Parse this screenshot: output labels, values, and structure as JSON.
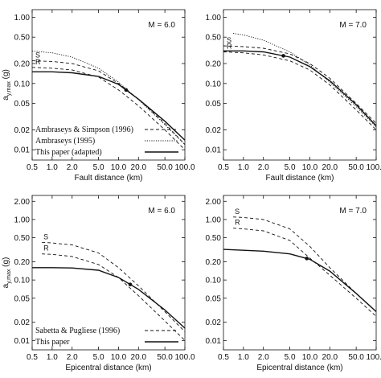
{
  "chart_data": [
    {
      "type": "line",
      "panel": "top-left",
      "annotation": "M = 6.0",
      "xlabel": "Fault distance (km)",
      "ylabel": "a",
      "ylabel_sub": "y,max",
      "ylabel_unit": "(g)",
      "x_scale": "log",
      "y_scale": "log",
      "xlim": [
        0.5,
        100
      ],
      "ylim": [
        0.007,
        1.3
      ],
      "x_ticks": [
        "0.5",
        "1.0",
        "2.0",
        "5.0",
        "10.0",
        "20.0",
        "50.0",
        "100.0"
      ],
      "y_ticks": [
        "0.01",
        "0.02",
        "0.05",
        "0.10",
        "0.20",
        "0.50",
        "1.00"
      ],
      "show_y_ticklabels": true,
      "legend": "bottom-left",
      "series": [
        {
          "name": "Ambraseys & Simpson (1996)",
          "style": "dashed",
          "tag": "S",
          "x": [
            0.5,
            1,
            2,
            5,
            10,
            20,
            50,
            100
          ],
          "y": [
            0.22,
            0.215,
            0.2,
            0.155,
            0.1,
            0.058,
            0.025,
            0.012
          ]
        },
        {
          "name": "",
          "style": "dashed",
          "tag": "R",
          "x": [
            0.5,
            1,
            2,
            5,
            10,
            20,
            50,
            100
          ],
          "y": [
            0.175,
            0.17,
            0.16,
            0.125,
            0.08,
            0.046,
            0.02,
            0.01
          ]
        },
        {
          "name": "Ambraseys (1995)",
          "style": "dotted",
          "tag": "",
          "x": [
            0.5,
            1,
            2,
            5,
            10,
            20,
            50,
            100
          ],
          "y": [
            0.31,
            0.29,
            0.25,
            0.17,
            0.105,
            0.057,
            0.024,
            0.012
          ]
        },
        {
          "name": "This paper (adapted)",
          "style": "solid",
          "tag": "",
          "marker_x": 13,
          "x": [
            0.5,
            1,
            2,
            5,
            10,
            20,
            50,
            100
          ],
          "y": [
            0.15,
            0.15,
            0.145,
            0.128,
            0.097,
            0.058,
            0.027,
            0.014
          ]
        }
      ]
    },
    {
      "type": "line",
      "panel": "top-right",
      "annotation": "M = 7.0",
      "xlabel": "Fault distance (km)",
      "ylabel": "",
      "ylabel_sub": "",
      "ylabel_unit": "",
      "x_scale": "log",
      "y_scale": "log",
      "xlim": [
        0.5,
        100
      ],
      "ylim": [
        0.007,
        1.3
      ],
      "x_ticks": [
        "0.5",
        "1.0",
        "2.0",
        "5.0",
        "10.0",
        "20.0",
        "50.0",
        "100.0"
      ],
      "y_ticks": [
        "0.01",
        "0.02",
        "0.05",
        "0.10",
        "0.20",
        "0.50",
        "1.00"
      ],
      "show_y_ticklabels": true,
      "legend": "none",
      "series": [
        {
          "name": "",
          "style": "dashed",
          "tag": "S",
          "x": [
            0.5,
            1,
            2,
            5,
            10,
            20,
            50,
            100
          ],
          "y": [
            0.37,
            0.36,
            0.34,
            0.28,
            0.2,
            0.12,
            0.05,
            0.025
          ]
        },
        {
          "name": "",
          "style": "dashed",
          "tag": "R",
          "x": [
            0.5,
            1,
            2,
            5,
            10,
            20,
            50,
            100
          ],
          "y": [
            0.3,
            0.29,
            0.27,
            0.22,
            0.16,
            0.095,
            0.04,
            0.02
          ]
        },
        {
          "name": "",
          "style": "dotted",
          "tag": "",
          "x": [
            0.7,
            1,
            2,
            5,
            10,
            20,
            50,
            100
          ],
          "y": [
            0.57,
            0.54,
            0.45,
            0.3,
            0.19,
            0.105,
            0.045,
            0.022
          ]
        },
        {
          "name": "",
          "style": "solid",
          "tag": "",
          "marker_x": 4,
          "x": [
            0.5,
            1,
            2,
            5,
            10,
            20,
            50,
            100
          ],
          "y": [
            0.31,
            0.31,
            0.3,
            0.25,
            0.18,
            0.11,
            0.048,
            0.023
          ]
        }
      ]
    },
    {
      "type": "line",
      "panel": "bottom-left",
      "annotation": "M = 6.0",
      "xlabel": "Epicentral distance (km)",
      "ylabel": "a",
      "ylabel_sub": "y,max",
      "ylabel_unit": "(g)",
      "x_scale": "log",
      "y_scale": "log",
      "xlim": [
        0.5,
        100
      ],
      "ylim": [
        0.007,
        2.5
      ],
      "x_ticks": [
        "0.5",
        "1.0",
        "2.0",
        "5.0",
        "10.0",
        "20.0",
        "50.0",
        "100.0"
      ],
      "y_ticks": [
        "0.01",
        "0.02",
        "0.05",
        "0.10",
        "0.20",
        "0.50",
        "1.00",
        "2.00"
      ],
      "show_y_ticklabels": true,
      "legend": "bottom-left",
      "series": [
        {
          "name": "Sabetta & Pugliese (1996)",
          "style": "dashed",
          "tag": "S",
          "x": [
            0.7,
            1,
            2,
            5,
            10,
            20,
            50,
            100
          ],
          "y": [
            0.42,
            0.41,
            0.38,
            0.28,
            0.16,
            0.08,
            0.03,
            0.014
          ]
        },
        {
          "name": "",
          "style": "dashed",
          "tag": "R",
          "x": [
            0.7,
            1,
            2,
            5,
            10,
            20,
            50,
            100
          ],
          "y": [
            0.27,
            0.265,
            0.245,
            0.18,
            0.11,
            0.055,
            0.021,
            0.01
          ]
        },
        {
          "name": "This paper",
          "style": "solid",
          "tag": "",
          "marker_x": 15,
          "x": [
            0.5,
            1,
            2,
            5,
            10,
            20,
            50,
            100
          ],
          "y": [
            0.16,
            0.16,
            0.158,
            0.145,
            0.11,
            0.07,
            0.032,
            0.016
          ]
        }
      ]
    },
    {
      "type": "line",
      "panel": "bottom-right",
      "annotation": "M = 7.0",
      "xlabel": "Epicentral distance (km)",
      "ylabel": "",
      "ylabel_sub": "",
      "ylabel_unit": "",
      "x_scale": "log",
      "y_scale": "log",
      "xlim": [
        0.5,
        100
      ],
      "ylim": [
        0.007,
        2.5
      ],
      "x_ticks": [
        "0.5",
        "1.0",
        "2.0",
        "5.0",
        "10.0",
        "20.0",
        "50.0",
        "100.0"
      ],
      "y_ticks": [
        "0.01",
        "0.02",
        "0.05",
        "0.10",
        "0.20",
        "0.50",
        "1.00",
        "2.00"
      ],
      "show_y_ticklabels": true,
      "legend": "none",
      "series": [
        {
          "name": "",
          "style": "dashed",
          "tag": "S",
          "x": [
            0.7,
            1,
            2,
            5,
            10,
            20,
            50,
            100
          ],
          "y": [
            1.1,
            1.08,
            1.0,
            0.7,
            0.36,
            0.16,
            0.06,
            0.03
          ]
        },
        {
          "name": "",
          "style": "dashed",
          "tag": "R",
          "x": [
            0.7,
            1,
            2,
            5,
            10,
            20,
            50,
            100
          ],
          "y": [
            0.72,
            0.7,
            0.65,
            0.45,
            0.23,
            0.12,
            0.05,
            0.025
          ]
        },
        {
          "name": "",
          "style": "solid",
          "tag": "",
          "marker_x": 9,
          "x": [
            0.5,
            1,
            2,
            5,
            10,
            20,
            50,
            100
          ],
          "y": [
            0.32,
            0.31,
            0.3,
            0.27,
            0.22,
            0.14,
            0.06,
            0.03
          ]
        }
      ]
    }
  ]
}
